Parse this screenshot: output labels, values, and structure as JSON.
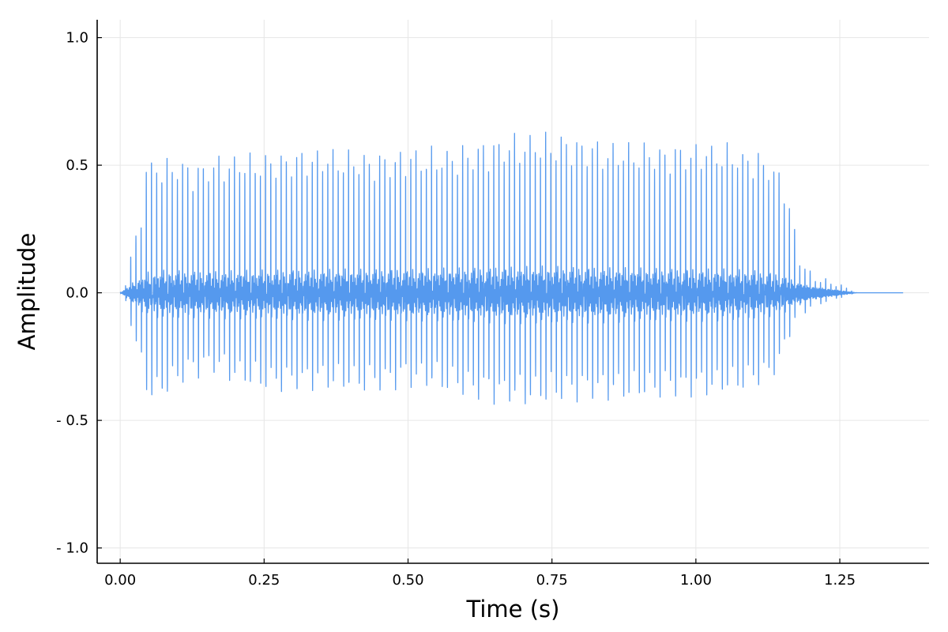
{
  "chart_data": {
    "type": "line",
    "title": "",
    "xlabel": "Time (s)",
    "ylabel": "Amplitude",
    "xlim": [
      -0.04,
      1.405
    ],
    "ylim": [
      -1.06,
      1.07
    ],
    "x_ticks": [
      0.0,
      0.25,
      0.5,
      0.75,
      1.0,
      1.25
    ],
    "x_tick_labels": [
      "0.00",
      "0.25",
      "0.50",
      "0.75",
      "1.00",
      "1.25"
    ],
    "y_ticks": [
      1.0,
      0.5,
      0.0,
      -0.5,
      -1.0
    ],
    "y_tick_labels": [
      "1.0",
      "0.5",
      "0.0",
      "- 0.5",
      "- 1.0"
    ],
    "grid": true,
    "legend": "none",
    "series_color": "#5599ee",
    "grid_color": "#e6e6e6",
    "series": [
      {
        "name": "",
        "style": "dense-oscillation",
        "signal_start": 0.0,
        "signal_end": 1.36,
        "pulse_frequency_hz": 111,
        "pulse_decay": 0.0042,
        "hum_frequency_hz": 520,
        "upper_envelope": [
          [
            0.0,
            0.0
          ],
          [
            0.01,
            0.04
          ],
          [
            0.02,
            0.17
          ],
          [
            0.03,
            0.2
          ],
          [
            0.04,
            0.33
          ],
          [
            0.045,
            0.49
          ],
          [
            0.08,
            0.48
          ],
          [
            0.1,
            0.49
          ],
          [
            0.13,
            0.46
          ],
          [
            0.16,
            0.49
          ],
          [
            0.2,
            0.5
          ],
          [
            0.25,
            0.5
          ],
          [
            0.3,
            0.51
          ],
          [
            0.35,
            0.52
          ],
          [
            0.4,
            0.51
          ],
          [
            0.45,
            0.5
          ],
          [
            0.5,
            0.52
          ],
          [
            0.55,
            0.52
          ],
          [
            0.6,
            0.53
          ],
          [
            0.65,
            0.56
          ],
          [
            0.7,
            0.575
          ],
          [
            0.75,
            0.575
          ],
          [
            0.8,
            0.56
          ],
          [
            0.85,
            0.54
          ],
          [
            0.9,
            0.54
          ],
          [
            0.95,
            0.53
          ],
          [
            1.0,
            0.54
          ],
          [
            1.05,
            0.54
          ],
          [
            1.08,
            0.52
          ],
          [
            1.11,
            0.51
          ],
          [
            1.13,
            0.48
          ],
          [
            1.15,
            0.43
          ],
          [
            1.16,
            0.35
          ],
          [
            1.17,
            0.25
          ],
          [
            1.18,
            0.13
          ],
          [
            1.2,
            0.06
          ],
          [
            1.23,
            0.04
          ],
          [
            1.26,
            0.02
          ],
          [
            1.28,
            0.0
          ],
          [
            1.36,
            0.0
          ]
        ],
        "lower_envelope": [
          [
            0.0,
            0.0
          ],
          [
            0.01,
            -0.04
          ],
          [
            0.02,
            -0.12
          ],
          [
            0.03,
            -0.21
          ],
          [
            0.04,
            -0.3
          ],
          [
            0.05,
            -0.39
          ],
          [
            0.08,
            -0.36
          ],
          [
            0.1,
            -0.32
          ],
          [
            0.13,
            -0.29
          ],
          [
            0.16,
            -0.27
          ],
          [
            0.2,
            -0.31
          ],
          [
            0.25,
            -0.34
          ],
          [
            0.3,
            -0.34
          ],
          [
            0.35,
            -0.33
          ],
          [
            0.4,
            -0.34
          ],
          [
            0.45,
            -0.34
          ],
          [
            0.5,
            -0.32
          ],
          [
            0.55,
            -0.33
          ],
          [
            0.6,
            -0.36
          ],
          [
            0.65,
            -0.38
          ],
          [
            0.7,
            -0.39
          ],
          [
            0.75,
            -0.38
          ],
          [
            0.8,
            -0.37
          ],
          [
            0.85,
            -0.37
          ],
          [
            0.9,
            -0.37
          ],
          [
            0.95,
            -0.36
          ],
          [
            1.0,
            -0.36
          ],
          [
            1.05,
            -0.35
          ],
          [
            1.1,
            -0.33
          ],
          [
            1.13,
            -0.3
          ],
          [
            1.15,
            -0.25
          ],
          [
            1.16,
            -0.15
          ],
          [
            1.18,
            -0.07
          ],
          [
            1.22,
            -0.03
          ],
          [
            1.26,
            -0.01
          ],
          [
            1.28,
            0.0
          ],
          [
            1.36,
            0.0
          ]
        ],
        "hum_envelope": [
          [
            0.0,
            0.0
          ],
          [
            0.03,
            0.035
          ],
          [
            0.08,
            0.05
          ],
          [
            0.2,
            0.05
          ],
          [
            0.5,
            0.055
          ],
          [
            0.75,
            0.06
          ],
          [
            1.1,
            0.05
          ],
          [
            1.15,
            0.04
          ],
          [
            1.2,
            0.02
          ],
          [
            1.28,
            0.0
          ],
          [
            1.36,
            0.0
          ]
        ]
      }
    ]
  }
}
